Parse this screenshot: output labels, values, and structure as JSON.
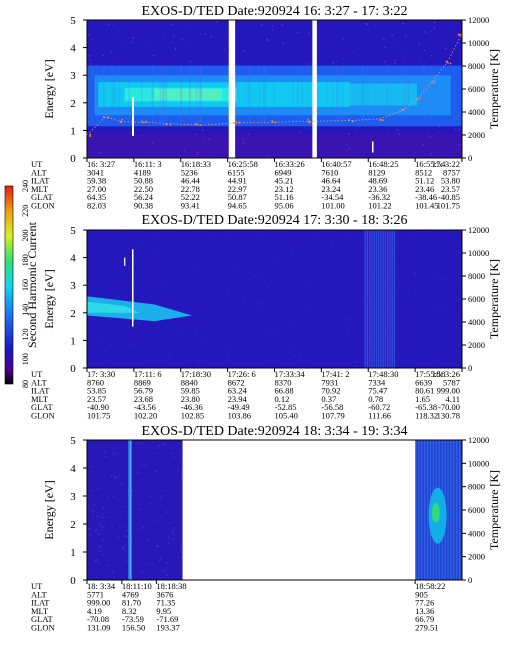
{
  "chart_data": {
    "type": "heatmap",
    "colorbar": {
      "label": "Second Harmonic Current",
      "ticks": [
        80,
        100,
        120,
        140,
        160,
        180,
        200,
        220,
        240
      ],
      "colors": [
        "#000000",
        "#4a0088",
        "#1c18c8",
        "#1e6cf4",
        "#10d8f0",
        "#30e070",
        "#d8f020",
        "#f0a010",
        "#e02010"
      ]
    },
    "panels": [
      {
        "title": "EXOS-D/TED   Date:920924  16: 3:27 - 17: 3:22",
        "ylabel": "Energy [eV]",
        "y2label": "Temperature [K]",
        "ylim": [
          0,
          5
        ],
        "y2lim": [
          0,
          12000
        ],
        "yticks": [
          0,
          1,
          2,
          3,
          4,
          5
        ],
        "y2ticks": [
          0,
          2000,
          4000,
          6000,
          8000,
          10000,
          12000
        ],
        "gaps": [
          [
            0.378,
            0.395
          ],
          [
            0.601,
            0.613
          ]
        ],
        "ephemeris_labels": [
          "UT",
          "ALT",
          "ILAT",
          "MLT",
          "GLAT",
          "GLON"
        ],
        "ephemeris": [
          [
            "16: 3:27",
            "3041",
            "59.38",
            "27.00",
            "64.35",
            "82.03"
          ],
          [
            "16:11: 3",
            "4189",
            "50.88",
            "22.50",
            "56.24",
            "90.38"
          ],
          [
            "16:18:33",
            "5236",
            "46.44",
            "22.78",
            "52.22",
            "93.41"
          ],
          [
            "16:25:58",
            "6155",
            "44.91",
            "22.97",
            "50.87",
            "94.65"
          ],
          [
            "16:33:26",
            "6949",
            "45.21",
            "23.12",
            "51.16",
            "95.06"
          ],
          [
            "16:40:57",
            "7610",
            "46.64",
            "23.24",
            "-34.54",
            "101.00"
          ],
          [
            "16:48:25",
            "8129",
            "48.69",
            "23.36",
            "-36.32",
            "101.22"
          ],
          [
            "16:55:54",
            "8512",
            "51.12",
            "23.46",
            "-38.46",
            "101.45"
          ],
          [
            "17: 3:22",
            "8757",
            "53.80",
            "23.57",
            "-40.85",
            "101.75"
          ]
        ],
        "temperature_line": [
          {
            "x": 0.0,
            "y": 1980
          },
          {
            "x": 0.05,
            "y": 3600
          },
          {
            "x": 0.09,
            "y": 3200
          },
          {
            "x": 0.15,
            "y": 3100
          },
          {
            "x": 0.22,
            "y": 3000
          },
          {
            "x": 0.3,
            "y": 2850
          },
          {
            "x": 0.4,
            "y": 3050
          },
          {
            "x": 0.5,
            "y": 3120
          },
          {
            "x": 0.6,
            "y": 3200
          },
          {
            "x": 0.7,
            "y": 3250
          },
          {
            "x": 0.78,
            "y": 3400
          },
          {
            "x": 0.84,
            "y": 4100
          },
          {
            "x": 0.88,
            "y": 5100
          },
          {
            "x": 0.92,
            "y": 6600
          },
          {
            "x": 0.96,
            "y": 8300
          },
          {
            "x": 1.0,
            "y": 10800
          }
        ]
      },
      {
        "title": "EXOS-D/TED   Date:920924  17: 3:30 - 18: 3:26",
        "ylabel": "Energy [eV]",
        "y2label": "Temperature [K]",
        "ylim": [
          0,
          5
        ],
        "y2lim": [
          0,
          12000
        ],
        "yticks": [
          0,
          1,
          2,
          3,
          4,
          5
        ],
        "y2ticks": [
          0,
          2000,
          4000,
          6000,
          8000,
          10000,
          12000
        ],
        "gaps": [],
        "ephemeris_labels": [
          "UT",
          "ALT",
          "ILAT",
          "MLT",
          "GLAT",
          "GLON"
        ],
        "ephemeris": [
          [
            "17: 3:30",
            "8760",
            "53.85",
            "23.57",
            "-40.90",
            "101.75"
          ],
          [
            "17:11: 6",
            "8869",
            "56.79",
            "23.68",
            "-43.56",
            "102.20"
          ],
          [
            "17:18:30",
            "8840",
            "59.85",
            "23.80",
            "-46.36",
            "102.85"
          ],
          [
            "17:26: 6",
            "8672",
            "63.24",
            "23.94",
            "-49.49",
            "103.86"
          ],
          [
            "17:33:34",
            "8370",
            "66.88",
            "0.12",
            "-52.85",
            "105.40"
          ],
          [
            "17:41: 2",
            "7931",
            "70.92",
            "0.37",
            "-56.58",
            "107.79"
          ],
          [
            "17:48:30",
            "7334",
            "75.47",
            "0.78",
            "-60.72",
            "111.66"
          ],
          [
            "17:55:58",
            "6639",
            "80.61",
            "1.65",
            "-65.38",
            "118.32"
          ],
          [
            "18: 3:26",
            "5787",
            "999.00",
            "4.11",
            "-70.00",
            "130.78"
          ]
        ]
      },
      {
        "title": "EXOS-D/TED   Date:920924  18: 3:34 - 19: 3:34",
        "ylabel": "Energy [eV]",
        "y2label": "Temperature [K]",
        "ylim": [
          0,
          5
        ],
        "y2lim": [
          0,
          12000
        ],
        "yticks": [
          0,
          1,
          2,
          3,
          4,
          5
        ],
        "y2ticks": [
          0,
          2000,
          4000,
          6000,
          8000,
          10000,
          12000
        ],
        "gaps": [
          [
            0.255,
            0.875
          ]
        ],
        "ephemeris_labels": [
          "UT",
          "ALT",
          "ILAT",
          "MLT",
          "GLAT",
          "GLON"
        ],
        "ephemeris": [
          [
            "18: 3:34",
            "5771",
            "999.00",
            "4.19",
            "-70.08",
            "131.09"
          ],
          [
            "18:11:10",
            "4769",
            "81.70",
            "8.32",
            "-73.59",
            "156.50"
          ],
          [
            "18:18:38",
            "3676",
            "71.35",
            "9.95",
            "-71.69",
            "193.37"
          ],
          [
            "18:58:22",
            "905",
            "77.26",
            "13.36",
            "66.79",
            "279.51"
          ]
        ]
      }
    ]
  }
}
